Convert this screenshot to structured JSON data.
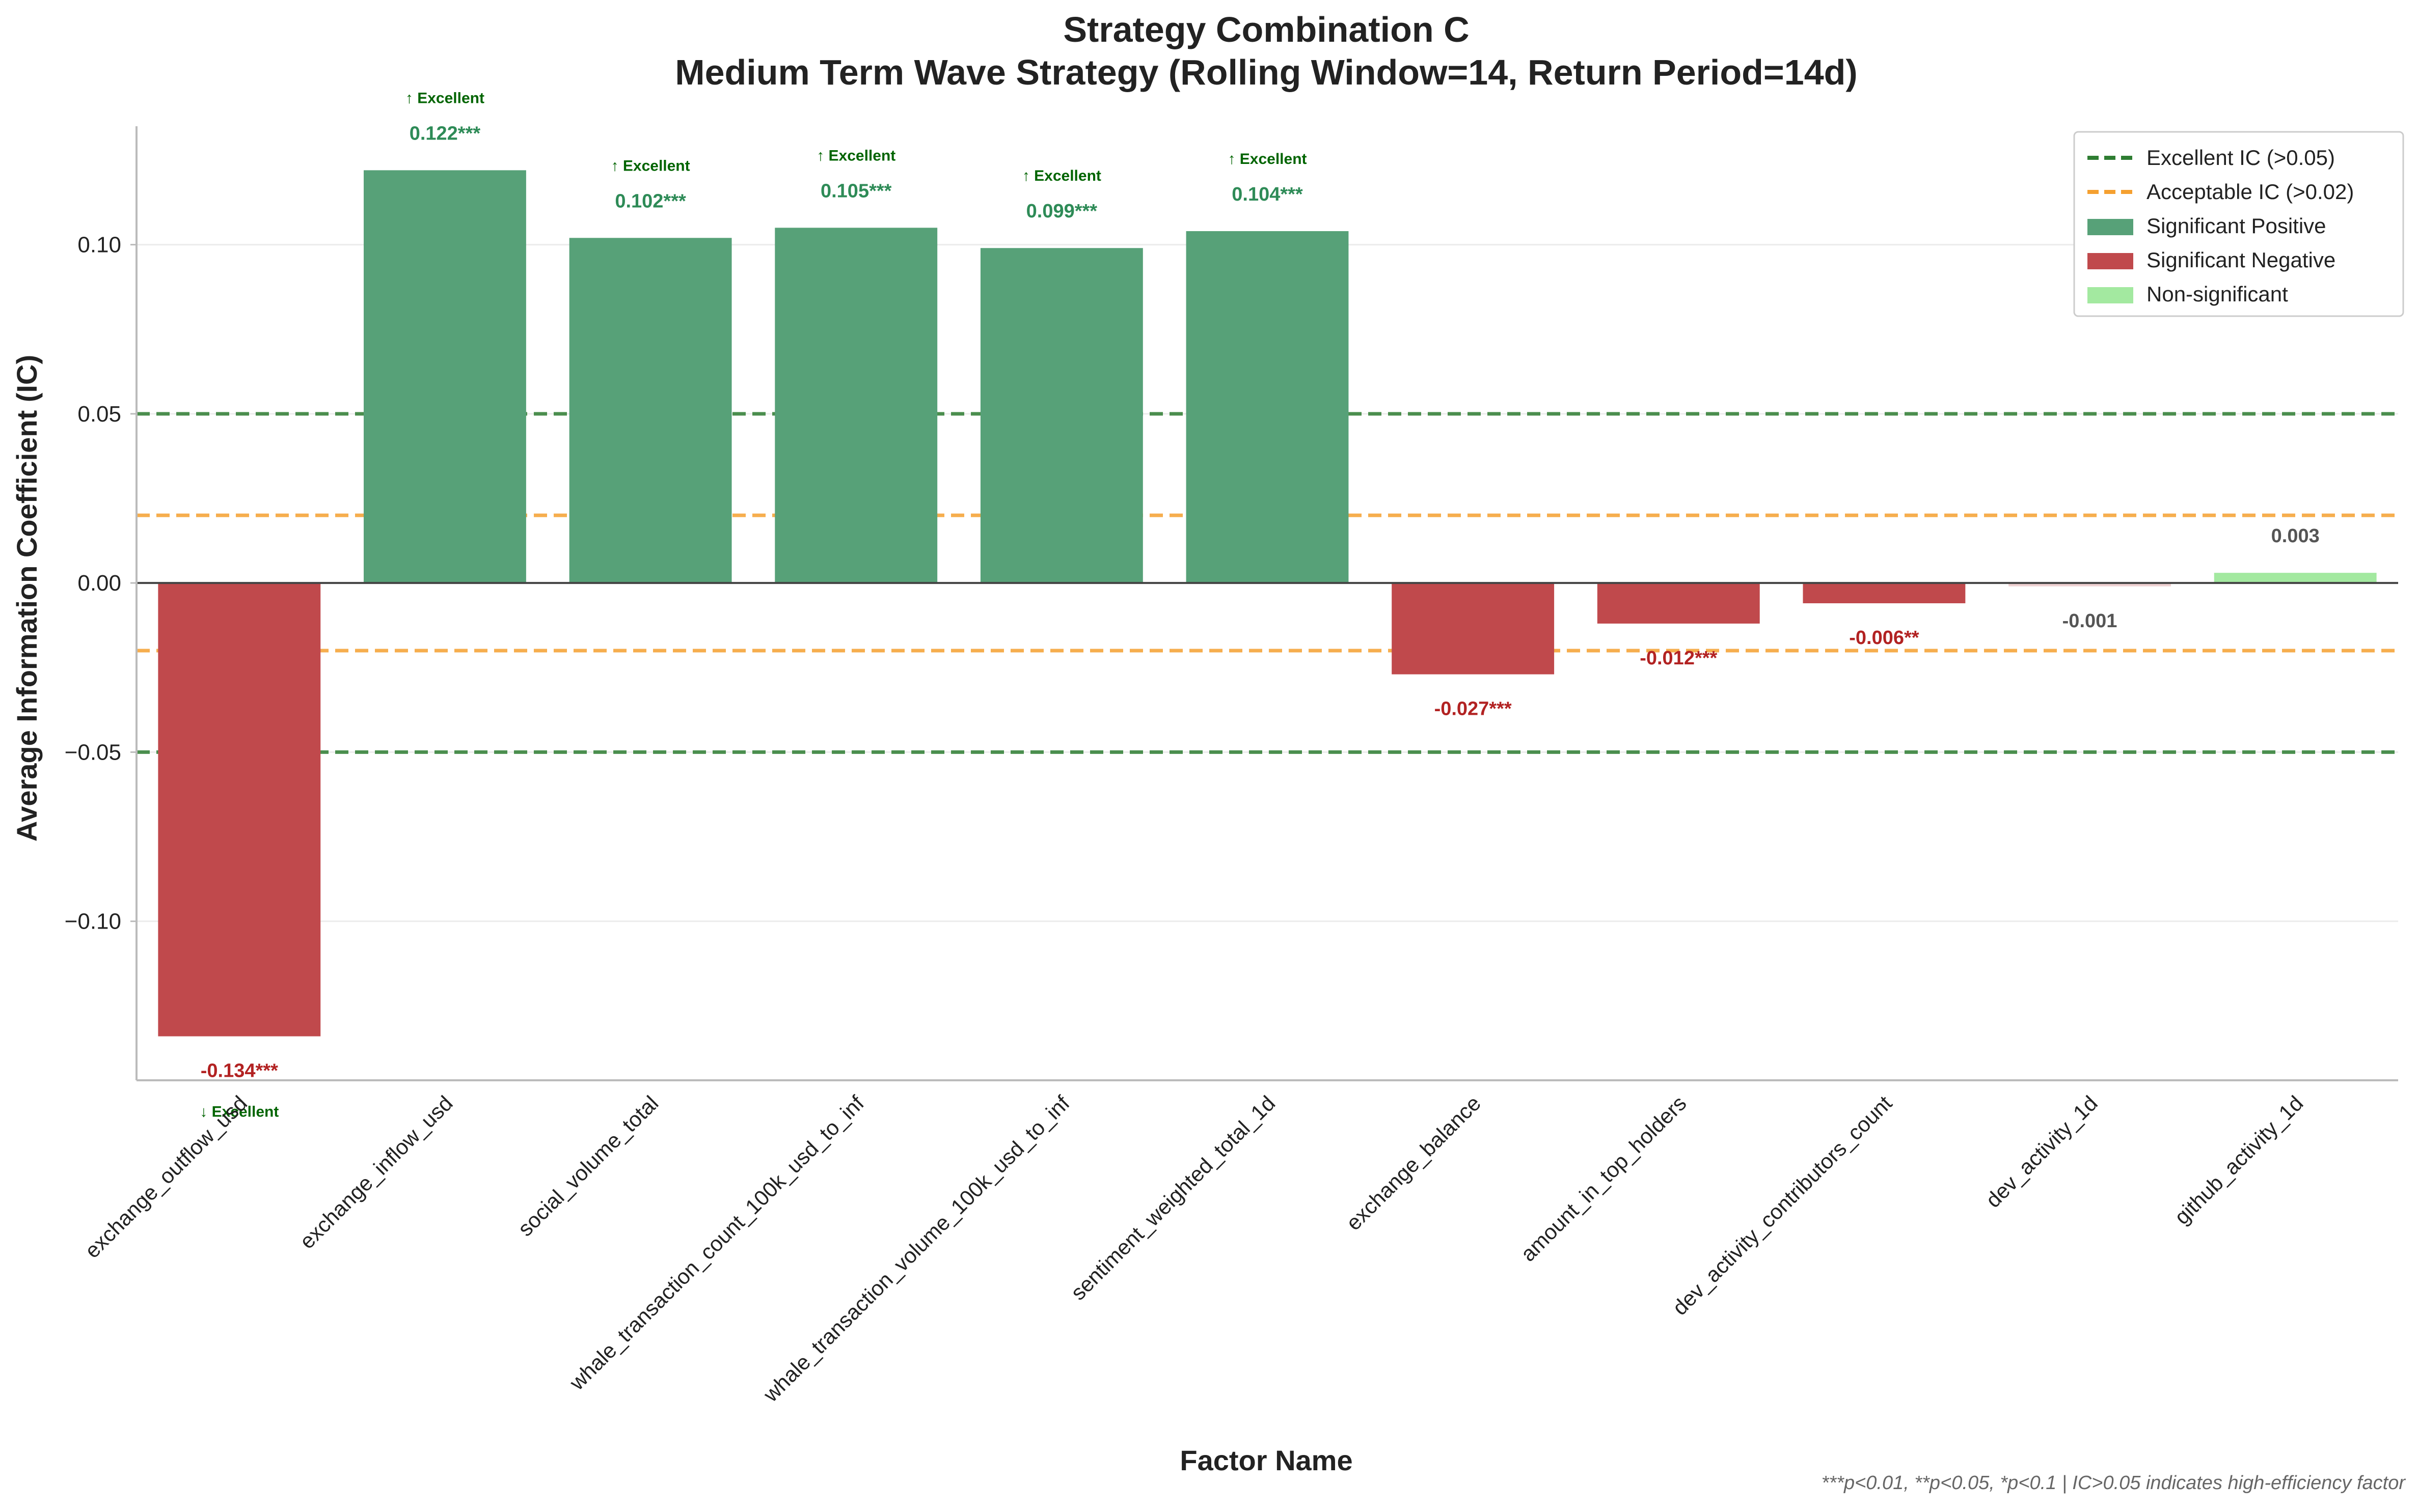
{
  "chart_data": {
    "type": "bar",
    "title": "Strategy Combination C",
    "subtitle": "Medium Term Wave Strategy (Rolling Window=14, Return Period=14d)",
    "xlabel": "Factor Name",
    "ylabel": "Average Information Coefficient (IC)",
    "ylim": [
      -0.147,
      0.135
    ],
    "yticks": [
      -0.1,
      -0.05,
      0.0,
      0.05,
      0.1
    ],
    "ytick_labels": [
      "−0.10",
      "−0.05",
      "0.00",
      "0.05",
      "0.10"
    ],
    "grid": true,
    "categories": [
      "exchange_outflow_usd",
      "exchange_inflow_usd",
      "social_volume_total",
      "whale_transaction_count_100k_usd_to_inf",
      "whale_transaction_volume_100k_usd_to_inf",
      "sentiment_weighted_total_1d",
      "exchange_balance",
      "amount_in_top_holders",
      "dev_activity_contributors_count",
      "dev_activity_1d",
      "github_activity_1d"
    ],
    "values": [
      -0.134,
      0.122,
      0.102,
      0.105,
      0.099,
      0.104,
      -0.027,
      -0.012,
      -0.006,
      -0.001,
      0.003
    ],
    "value_labels": [
      "-0.134***",
      "0.122***",
      "0.102***",
      "0.105***",
      "0.099***",
      "0.104***",
      "-0.027***",
      "-0.012***",
      "-0.006**",
      "-0.001",
      "0.003"
    ],
    "significance": [
      "neg",
      "pos",
      "pos",
      "pos",
      "pos",
      "pos",
      "neg",
      "neg",
      "neg",
      "none",
      "none"
    ],
    "quality_labels": [
      "↓ Excellent",
      "↑ Excellent",
      "↑ Excellent",
      "↑ Excellent",
      "↑ Excellent",
      "↑ Excellent",
      "",
      "",
      "",
      "",
      ""
    ],
    "reference_lines": [
      {
        "y": 0.05,
        "kind": "excellent"
      },
      {
        "y": -0.05,
        "kind": "excellent"
      },
      {
        "y": 0.02,
        "kind": "acceptable"
      },
      {
        "y": -0.02,
        "kind": "acceptable"
      }
    ],
    "legend": {
      "position": "top-right",
      "entries": [
        {
          "label": "Excellent IC (>0.05)",
          "kind": "line-excellent"
        },
        {
          "label": "Acceptable IC (>0.02)",
          "kind": "line-acceptable"
        },
        {
          "label": "Significant Positive",
          "kind": "pos"
        },
        {
          "label": "Significant Negative",
          "kind": "neg"
        },
        {
          "label": "Non-significant",
          "kind": "nonsig"
        }
      ]
    },
    "footnote": "***p<0.01, **p<0.05, *p<0.1 | IC>0.05 indicates high-efficiency factor",
    "colors": {
      "pos": "#57a178",
      "neg": "#c0494c",
      "nonsig": "#a3e9a0",
      "pos_label": "#2e8b57",
      "neg_label": "#b22222",
      "neutral_label": "#555555",
      "quality_label": "#006400",
      "excellent_line": "#2e7d32",
      "acceptable_line": "#f5a030",
      "zero_line": "#444444",
      "axis": "#bbbbbb",
      "grid": "#ececec",
      "text": "#222222"
    }
  }
}
